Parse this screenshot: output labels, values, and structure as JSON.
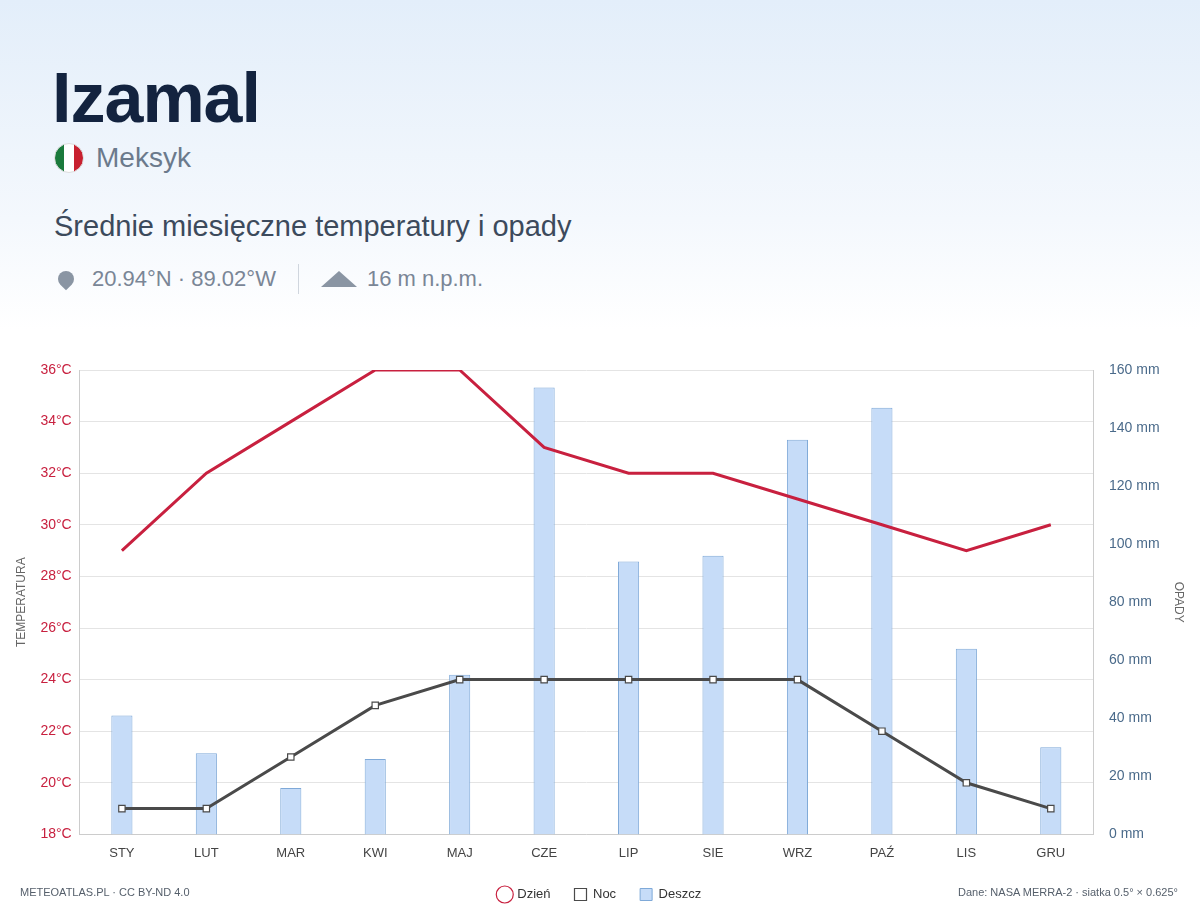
{
  "chart_data": {
    "type": "bar",
    "title": "Izamal",
    "country": "Meksyk",
    "subtitle": "Średnie miesięczne temperatury i opady",
    "coordinates": "20.94°N · 89.02°W",
    "elevation": "16 m n.p.m.",
    "source_left": "METEOATLAS.PL · CC BY-ND 4.0",
    "source_right": "Dane: NASA MERRA-2 · siatka 0.5° × 0.625°",
    "y_label": "TEMPERATURA",
    "y2_label": "OPADY",
    "categories": [
      "STY",
      "LUT",
      "MAR",
      "KWI",
      "MAJ",
      "CZE",
      "LIP",
      "SIE",
      "WRZ",
      "PAŹ",
      "LIS",
      "GRU"
    ],
    "series": [
      {
        "name": "Dzień",
        "type": "line",
        "color": "#c8203f",
        "marker": "none",
        "line_style": "solid",
        "values": [
          29,
          32,
          34,
          36,
          36,
          33,
          32,
          32,
          31,
          30,
          29,
          30
        ]
      },
      {
        "name": "Noc",
        "type": "line",
        "color": "#4a4a4a",
        "marker": "square",
        "line_style": "solid",
        "values": [
          19,
          19,
          21,
          23,
          24,
          24,
          24,
          24,
          24,
          22,
          20,
          19
        ]
      },
      {
        "name": "Deszcz",
        "type": "bar",
        "axis": "y2",
        "color": "#c6dcf8",
        "values": [
          41,
          28,
          16,
          26,
          55,
          154,
          94,
          96,
          136,
          147,
          64,
          30
        ]
      }
    ],
    "ylim": [
      18,
      36
    ],
    "yticks": [
      {
        "value": 18,
        "label": "18°C"
      },
      {
        "value": 20,
        "label": "20°C"
      },
      {
        "value": 22,
        "label": "22°C"
      },
      {
        "value": 24,
        "label": "24°C"
      },
      {
        "value": 26,
        "label": "26°C"
      },
      {
        "value": 28,
        "label": "28°C"
      },
      {
        "value": 30,
        "label": "30°C"
      },
      {
        "value": 32,
        "label": "32°C"
      },
      {
        "value": 34,
        "label": "34°C"
      },
      {
        "value": 36,
        "label": "36°C"
      }
    ],
    "y2lim": [
      0,
      160
    ],
    "y2ticks": [
      {
        "value": 0,
        "label": "0 mm"
      },
      {
        "value": 20,
        "label": "20 mm"
      },
      {
        "value": 40,
        "label": "40 mm"
      },
      {
        "value": 60,
        "label": "60 mm"
      },
      {
        "value": 80,
        "label": "80 mm"
      },
      {
        "value": 100,
        "label": "100 mm"
      },
      {
        "value": 120,
        "label": "120 mm"
      },
      {
        "value": 140,
        "label": "140 mm"
      },
      {
        "value": 160,
        "label": "160 mm"
      }
    ],
    "grid": true,
    "legend": "bottom"
  }
}
